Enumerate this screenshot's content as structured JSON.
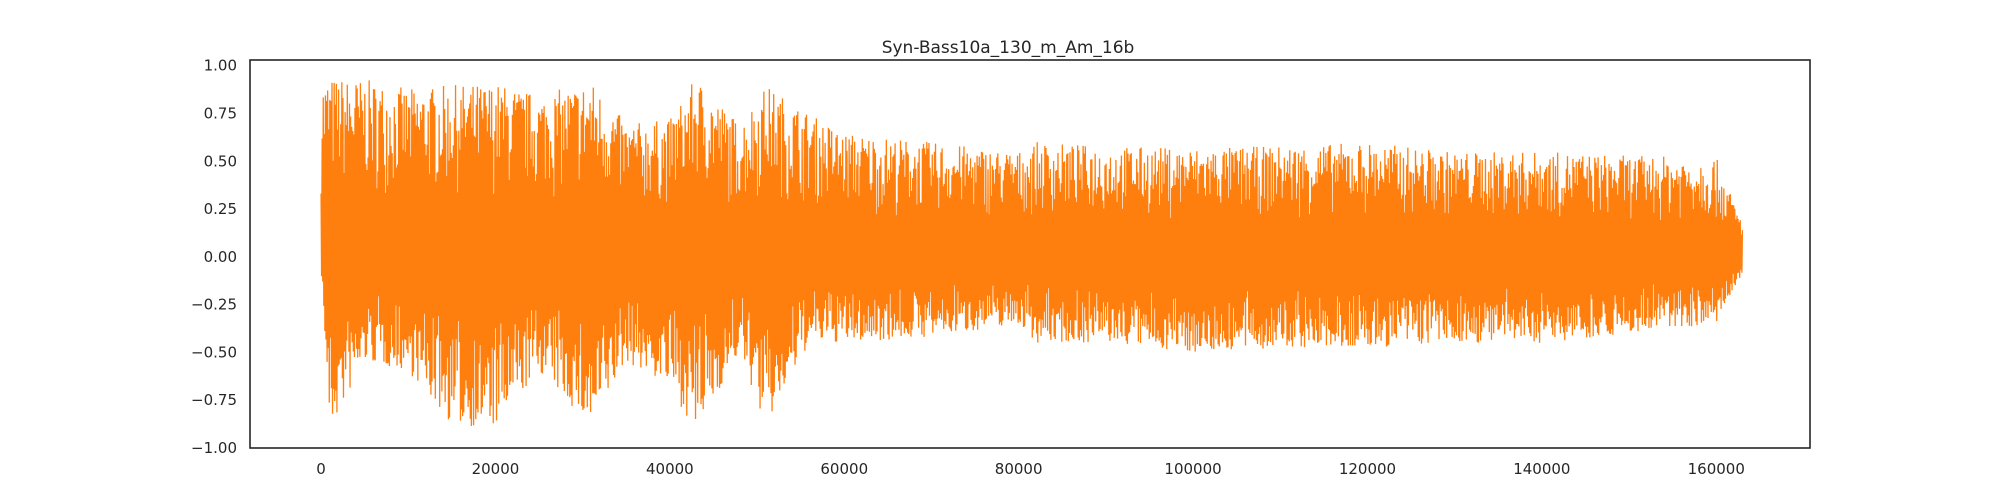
{
  "chart_data": {
    "type": "line",
    "title": "Syn-Bass10a_130_m_Am_16b",
    "xlabel": "",
    "ylabel": "",
    "xlim": [
      -8150,
      170750
    ],
    "ylim": [
      -1.0,
      1.03
    ],
    "x_ticks": [
      0,
      20000,
      40000,
      60000,
      80000,
      100000,
      120000,
      140000,
      160000
    ],
    "x_tick_labels": [
      "0",
      "20000",
      "40000",
      "60000",
      "80000",
      "100000",
      "120000",
      "140000",
      "160000"
    ],
    "y_ticks": [
      1.0,
      0.75,
      0.5,
      0.25,
      0.0,
      -0.25,
      -0.5,
      -0.75,
      -1.0
    ],
    "y_tick_labels": [
      "1.00",
      "0.75",
      "0.50",
      "0.25",
      "0.00",
      "−0.25",
      "−0.50",
      "−0.75",
      "−1.00"
    ],
    "grid": false,
    "line_color": "#ff7f0e",
    "series": [
      {
        "x_range": [
          0,
          163000
        ],
        "sample_count": 163000,
        "envelope_x": [
          0,
          1000,
          5000,
          10000,
          15000,
          20000,
          25000,
          31000,
          35000,
          40000,
          43000,
          48000,
          51000,
          56000,
          60000,
          70000,
          80000,
          82000,
          90000,
          100000,
          110000,
          120000,
          130000,
          140000,
          150000,
          160000,
          163000
        ],
        "envelope_max": [
          0.94,
          0.94,
          0.93,
          0.88,
          0.9,
          0.91,
          0.85,
          0.92,
          0.7,
          0.72,
          0.94,
          0.7,
          0.9,
          0.75,
          0.65,
          0.6,
          0.55,
          0.6,
          0.58,
          0.57,
          0.58,
          0.6,
          0.55,
          0.55,
          0.53,
          0.52,
          0.18
        ],
        "envelope_min": [
          -0.05,
          -0.92,
          -0.55,
          -0.6,
          -0.88,
          -0.9,
          -0.6,
          -0.9,
          -0.55,
          -0.68,
          -0.92,
          -0.5,
          -0.9,
          -0.45,
          -0.45,
          -0.42,
          -0.35,
          -0.45,
          -0.45,
          -0.5,
          -0.48,
          -0.48,
          -0.45,
          -0.45,
          -0.4,
          -0.35,
          -0.1
        ]
      }
    ]
  }
}
